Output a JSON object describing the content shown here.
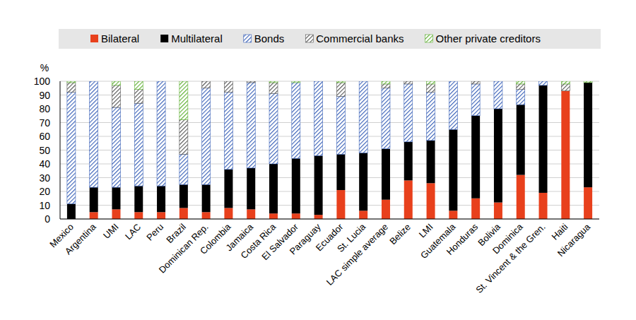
{
  "chart_data": {
    "type": "bar",
    "stacked": true,
    "legend": "top",
    "grid": true,
    "y_label": "%",
    "ylim": [
      0,
      100
    ],
    "yticks": [
      0,
      10,
      20,
      30,
      40,
      50,
      60,
      70,
      80,
      90,
      100
    ],
    "categories": [
      "Mexico",
      "Argentina",
      "UMI",
      "LAC",
      "Peru",
      "Brazil",
      "Dominican Rep.",
      "Colombia",
      "Jamaica",
      "Costa Rica",
      "El Salvador",
      "Paraguay",
      "Ecuador",
      "St. Lucia",
      "LAC simple average",
      "Belize",
      "LMI",
      "Guatemala",
      "Honduras",
      "Bolivia",
      "Dominica",
      "St. Vincent & the Gren.",
      "Haiti",
      "Nicaragua"
    ],
    "series": [
      {
        "name": "Bilateral",
        "color": "#e8401c",
        "values": [
          0,
          5,
          7,
          5,
          5,
          8,
          5,
          8,
          7,
          4,
          4,
          3,
          21,
          6,
          14,
          28,
          26,
          6,
          15,
          12,
          32,
          19,
          93,
          23
        ]
      },
      {
        "name": "Multilateral",
        "color": "#000000",
        "values": [
          11,
          18,
          16,
          19,
          19,
          17,
          20,
          28,
          30,
          36,
          40,
          43,
          26,
          42,
          37,
          28,
          31,
          59,
          60,
          68,
          51,
          78,
          0,
          76
        ]
      },
      {
        "name": "Bonds",
        "color": "#3b62b8",
        "values": [
          81,
          77,
          58,
          60,
          76,
          22,
          70,
          56,
          62,
          51,
          55,
          54,
          42,
          52,
          44,
          42,
          35,
          35,
          23,
          20,
          11,
          3,
          0,
          0
        ]
      },
      {
        "name": "Commercial banks",
        "color": "#555555",
        "values": [
          7,
          0,
          16,
          10,
          0,
          25,
          5,
          8,
          1,
          8,
          0,
          0,
          10,
          0,
          3,
          2,
          6,
          0,
          2,
          0,
          4,
          0,
          5,
          0
        ]
      },
      {
        "name": "Other private creditors",
        "color": "#5fb033",
        "values": [
          1,
          0,
          3,
          6,
          0,
          28,
          0,
          0,
          0,
          1,
          1,
          0,
          1,
          0,
          2,
          0,
          2,
          0,
          0,
          0,
          2,
          0,
          2,
          1
        ]
      }
    ]
  }
}
